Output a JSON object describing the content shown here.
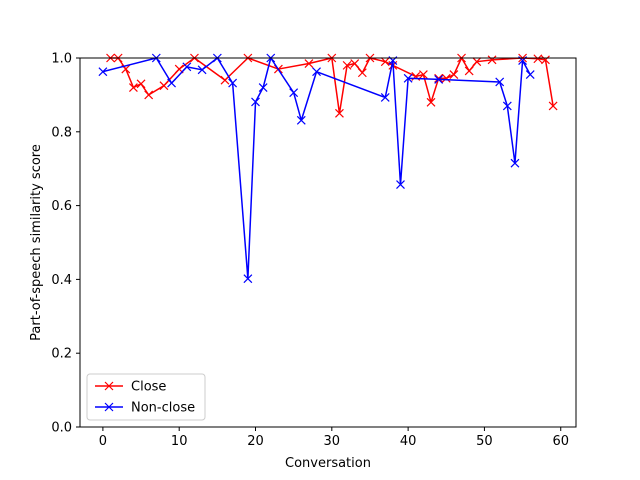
{
  "chart_data": {
    "type": "line",
    "xlabel": "Conversation",
    "ylabel": "Part-of-speech similarity score",
    "xlim": [
      -3.0,
      62.0
    ],
    "ylim": [
      0.0,
      1.0
    ],
    "xticks": [
      "0",
      "10",
      "20",
      "30",
      "40",
      "50",
      "60"
    ],
    "xtick_values": [
      0,
      10,
      20,
      30,
      40,
      50,
      60
    ],
    "yticks": [
      "0.0",
      "0.2",
      "0.4",
      "0.6",
      "0.8",
      "1.0"
    ],
    "ytick_values": [
      0.0,
      0.2,
      0.4,
      0.6,
      0.8,
      1.0
    ],
    "grid": false,
    "legend_position": "lower-left",
    "series": [
      {
        "name": "Close",
        "color": "#ff0000",
        "marker": "x",
        "points": [
          [
            1,
            1.0
          ],
          [
            2,
            1.0
          ],
          [
            3,
            0.97
          ],
          [
            4,
            0.92
          ],
          [
            5,
            0.93
          ],
          [
            6,
            0.9
          ],
          [
            8,
            0.925
          ],
          [
            10,
            0.97
          ],
          [
            12,
            1.0
          ],
          [
            16,
            0.94
          ],
          [
            19,
            1.0
          ],
          [
            23,
            0.97
          ],
          [
            27,
            0.985
          ],
          [
            30,
            1.0
          ],
          [
            31,
            0.85
          ],
          [
            32,
            0.98
          ],
          [
            33,
            0.985
          ],
          [
            34,
            0.96
          ],
          [
            35,
            1.0
          ],
          [
            37,
            0.99
          ],
          [
            38,
            0.98
          ],
          [
            41,
            0.95
          ],
          [
            42,
            0.955
          ],
          [
            43,
            0.88
          ],
          [
            44,
            0.945
          ],
          [
            45,
            0.945
          ],
          [
            46,
            0.955
          ],
          [
            47,
            1.0
          ],
          [
            48,
            0.965
          ],
          [
            49,
            0.99
          ],
          [
            51,
            0.995
          ],
          [
            55,
            1.0
          ],
          [
            57,
            0.998
          ],
          [
            58,
            0.995
          ],
          [
            59,
            0.87
          ]
        ]
      },
      {
        "name": "Non-close",
        "color": "#0000ff",
        "marker": "x",
        "points": [
          [
            0,
            0.963
          ],
          [
            7,
            1.0
          ],
          [
            9,
            0.932
          ],
          [
            11,
            0.976
          ],
          [
            13,
            0.968
          ],
          [
            15,
            1.0
          ],
          [
            17,
            0.932
          ],
          [
            19,
            0.402
          ],
          [
            20,
            0.881
          ],
          [
            21,
            0.92
          ],
          [
            22,
            1.0
          ],
          [
            25,
            0.906
          ],
          [
            26,
            0.831
          ],
          [
            28,
            0.963
          ],
          [
            37,
            0.893
          ],
          [
            38,
            0.993
          ],
          [
            39,
            0.657
          ],
          [
            40,
            0.945
          ],
          [
            44,
            0.942
          ],
          [
            52,
            0.935
          ],
          [
            53,
            0.87
          ],
          [
            54,
            0.715
          ],
          [
            55,
            0.993
          ],
          [
            56,
            0.955
          ]
        ]
      }
    ]
  }
}
